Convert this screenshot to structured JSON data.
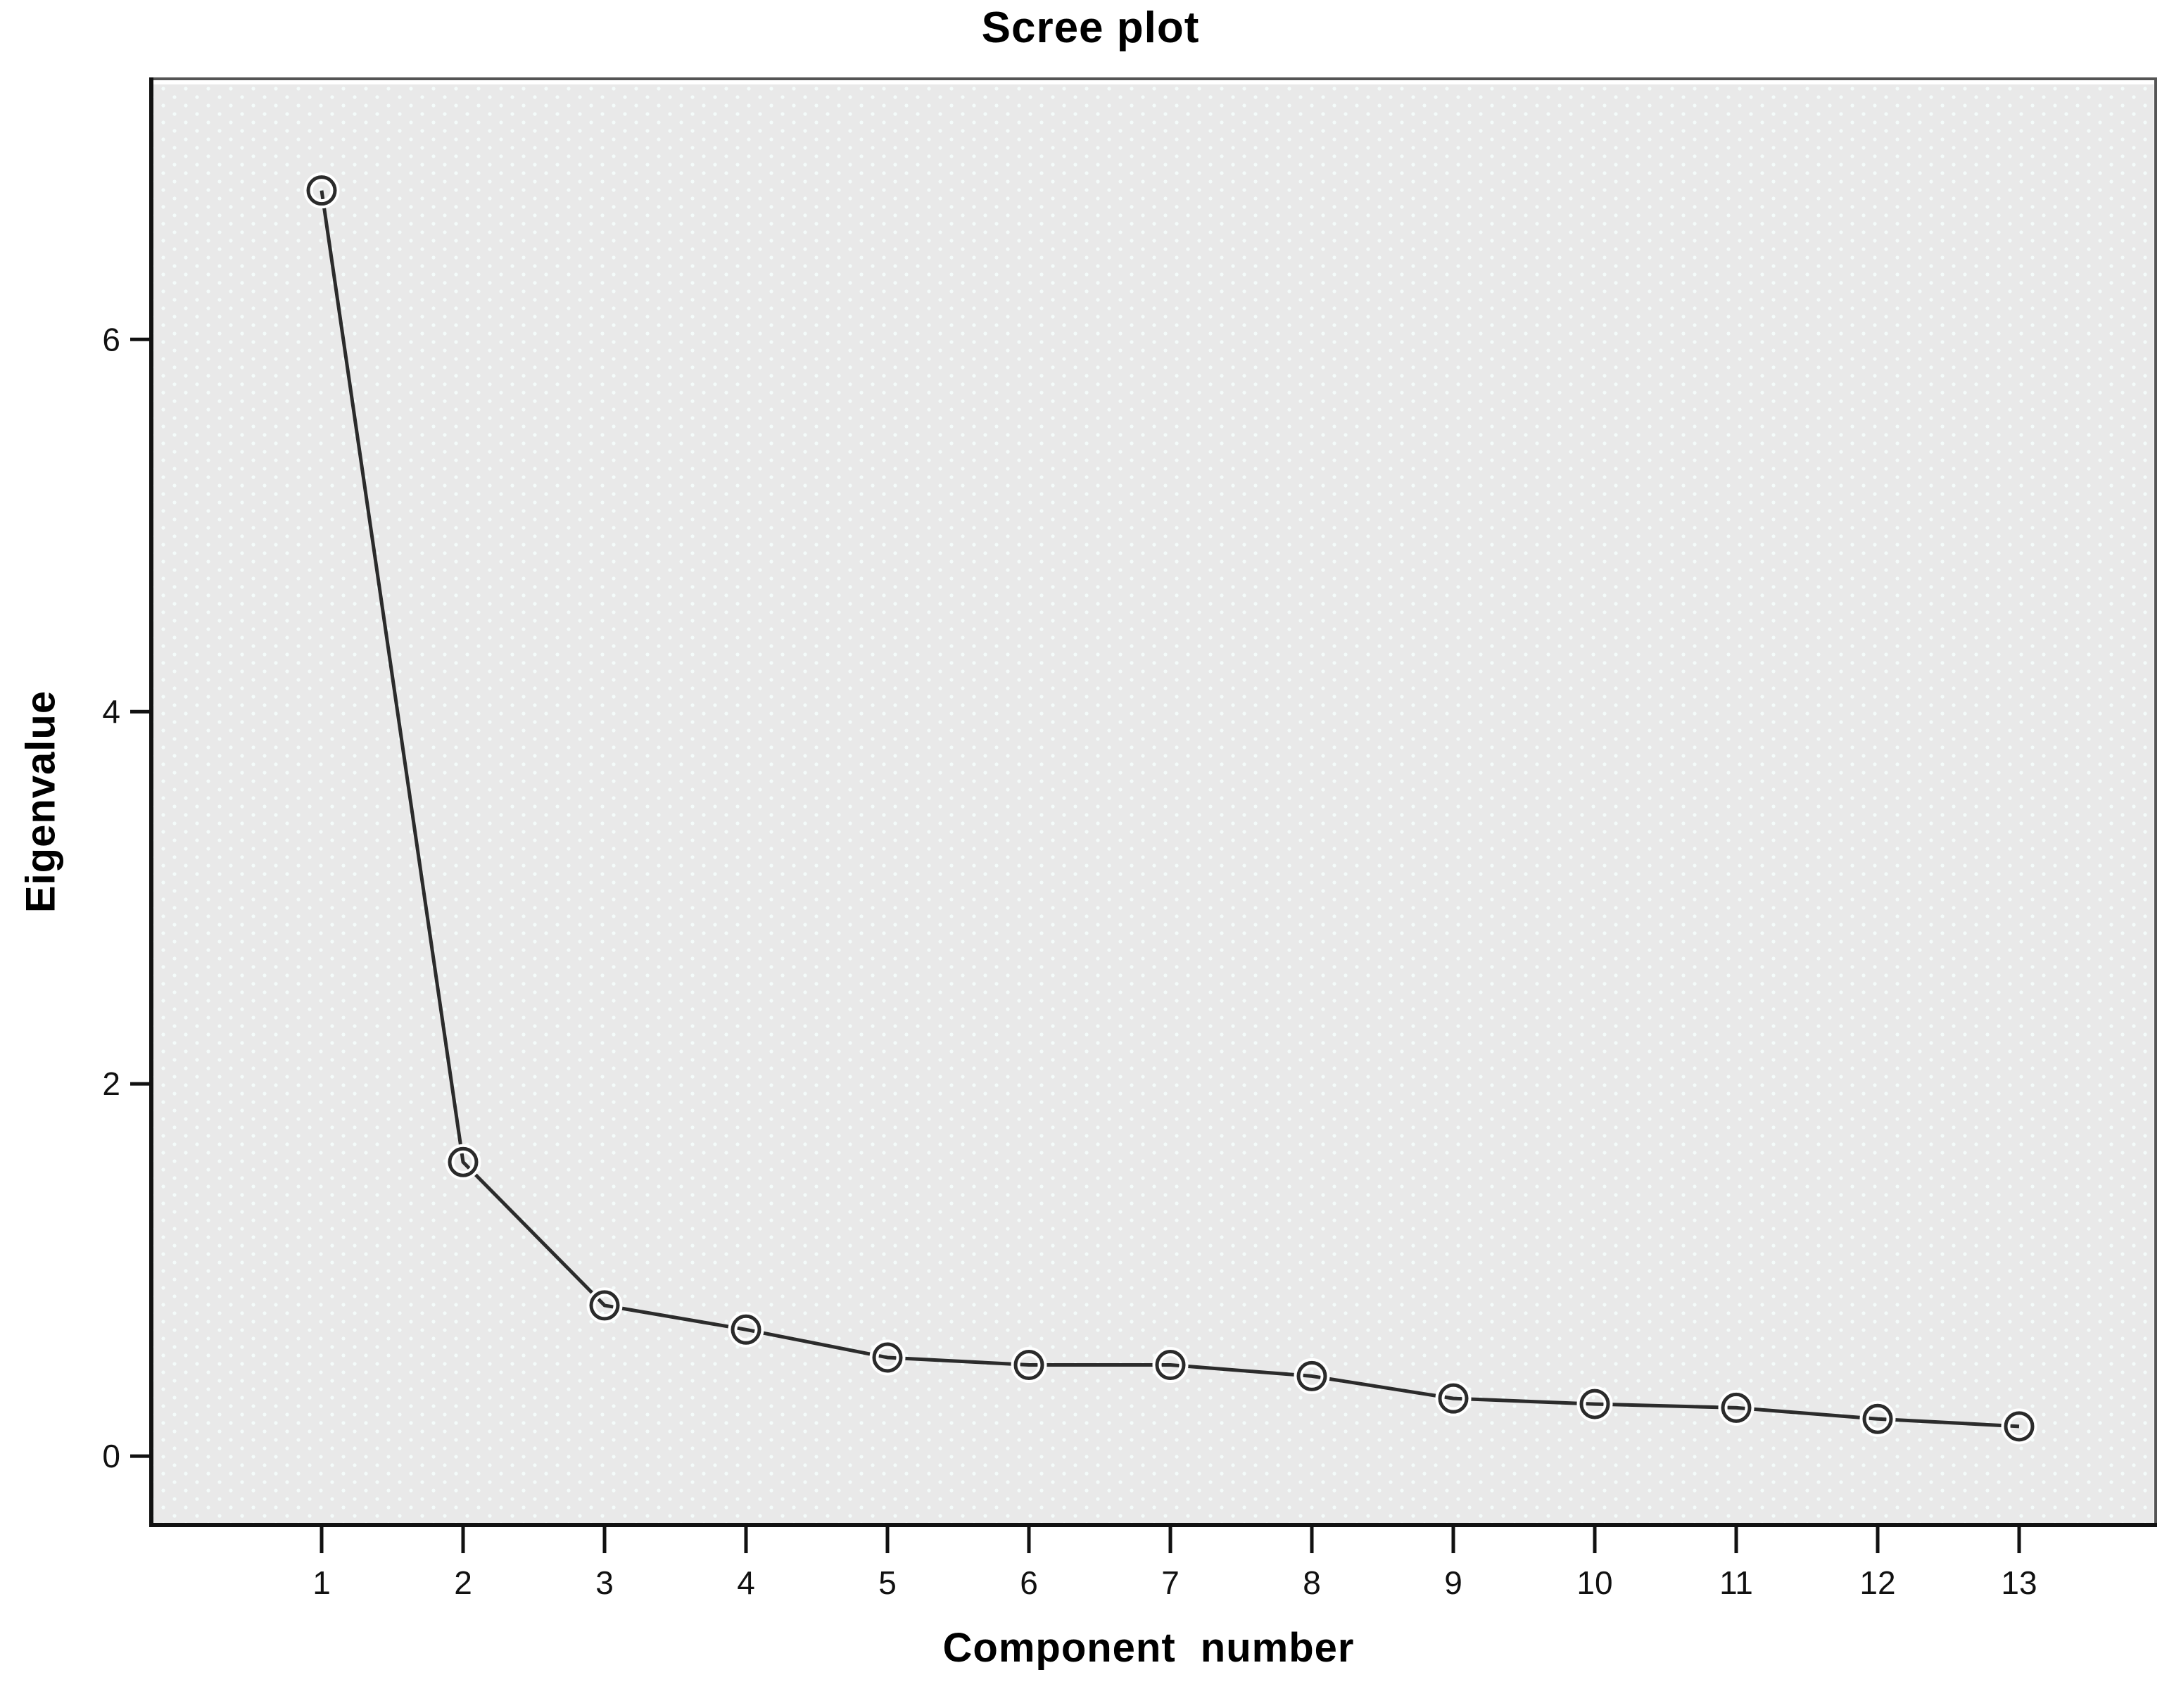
{
  "chart_data": {
    "type": "line",
    "title": "Scree plot",
    "xlabel": "Component number",
    "ylabel": "Eigenvalue",
    "categories": [
      1,
      2,
      3,
      4,
      5,
      6,
      7,
      8,
      9,
      10,
      11,
      12,
      13
    ],
    "series": [
      {
        "name": "Eigenvalue",
        "values": [
          6.8,
          1.58,
          0.81,
          0.68,
          0.53,
          0.49,
          0.49,
          0.43,
          0.31,
          0.28,
          0.26,
          0.2,
          0.16
        ]
      }
    ],
    "y_ticks": [
      0,
      2,
      4,
      6
    ],
    "ylim": [
      -0.37,
      7.4
    ],
    "grid": false,
    "legend": false,
    "marker": "open-circle",
    "line_color": "#2b2b2b",
    "marker_halo_color": "#ffffff",
    "axis_color": "#111111",
    "frame_color": "#555555",
    "plot_bg": "#e9e9e9",
    "plot_dot_color": "#f4fbfa",
    "outer_bg": "#ffffff"
  }
}
